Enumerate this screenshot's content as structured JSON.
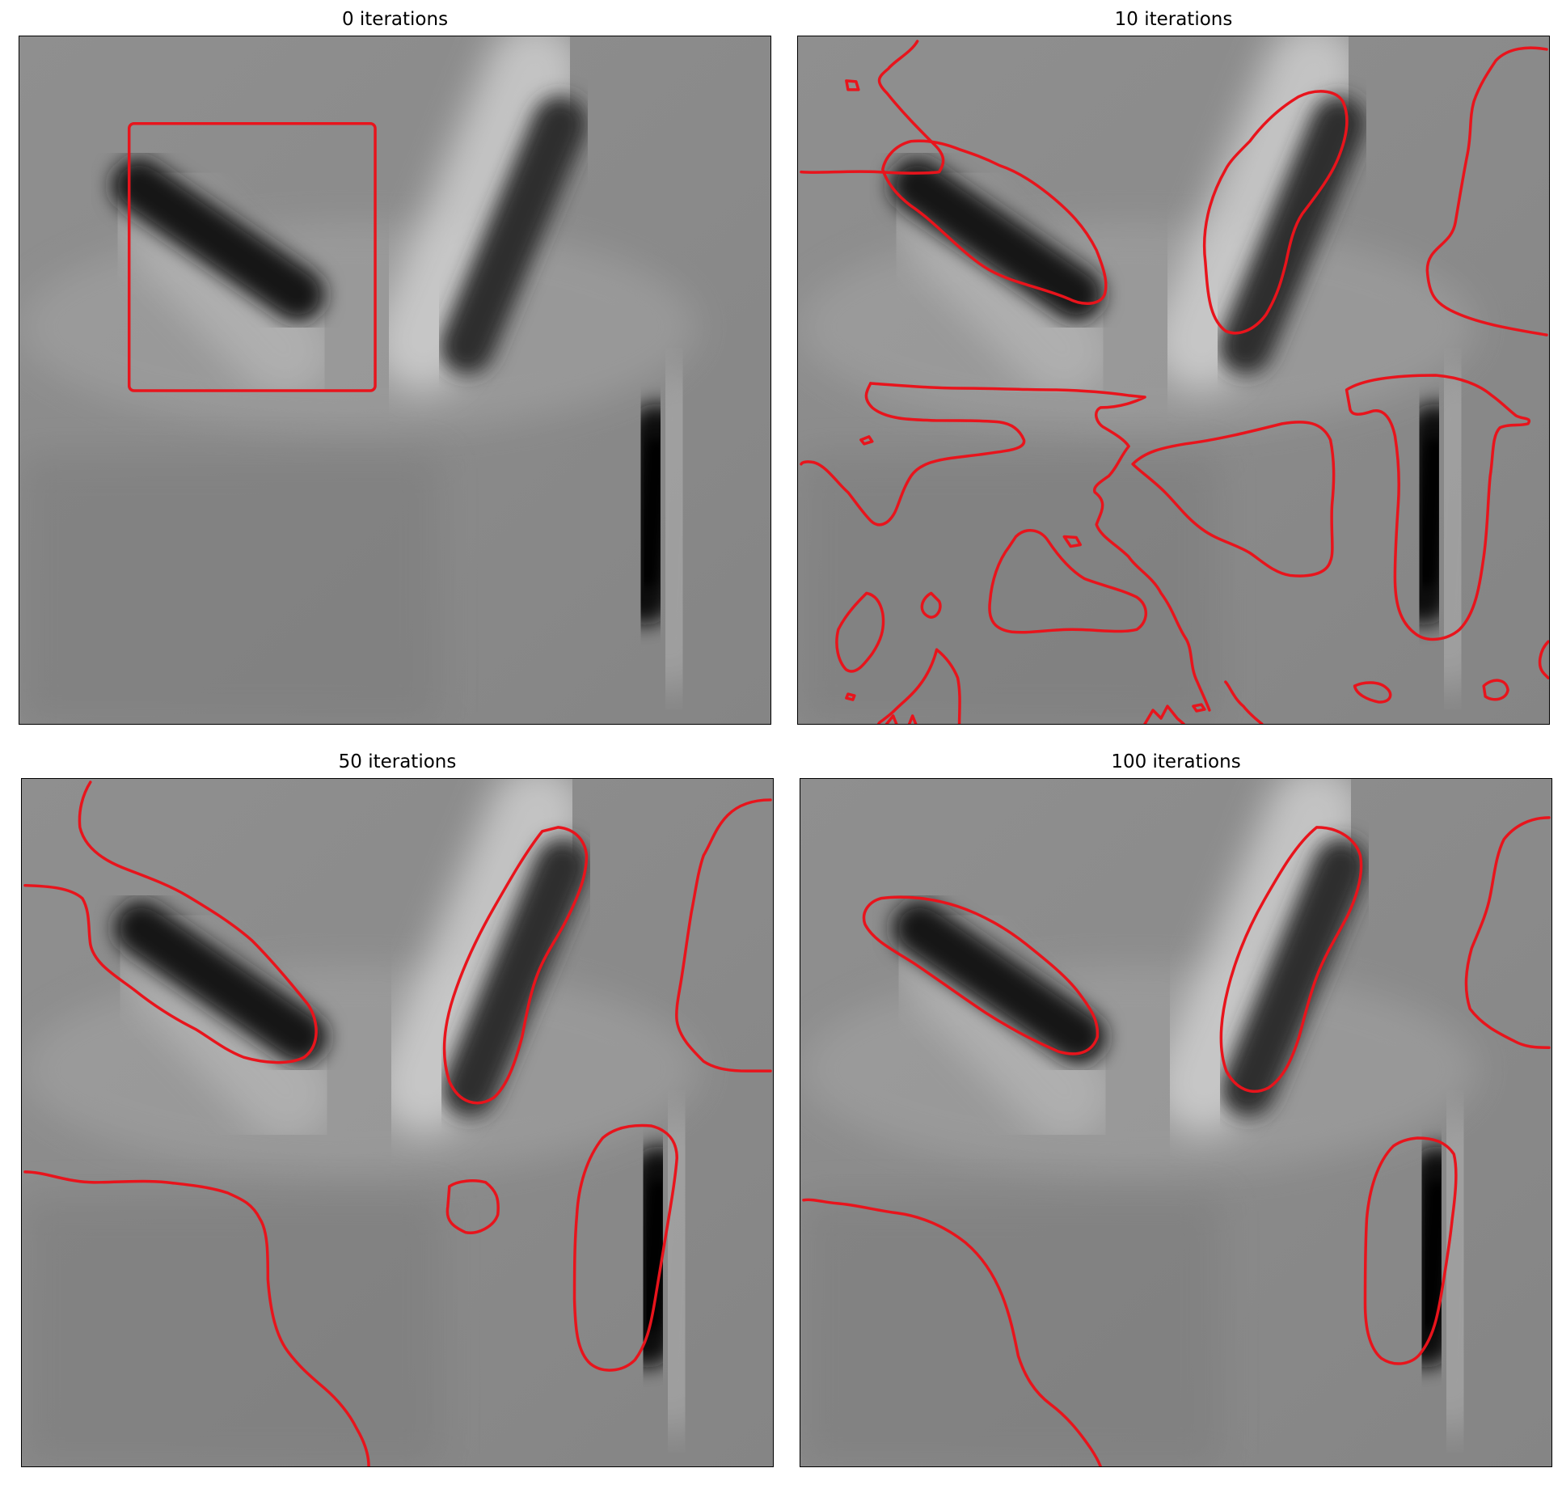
{
  "colors": {
    "contour": "#e8141c",
    "background_gray": "#8a8a8a",
    "cell_dark": "#141414",
    "halo_light": "#c4c4c4"
  },
  "panels": [
    {
      "title": "0 iterations"
    },
    {
      "title": "10 iterations"
    },
    {
      "title": "50 iterations"
    },
    {
      "title": "100 iterations"
    }
  ]
}
